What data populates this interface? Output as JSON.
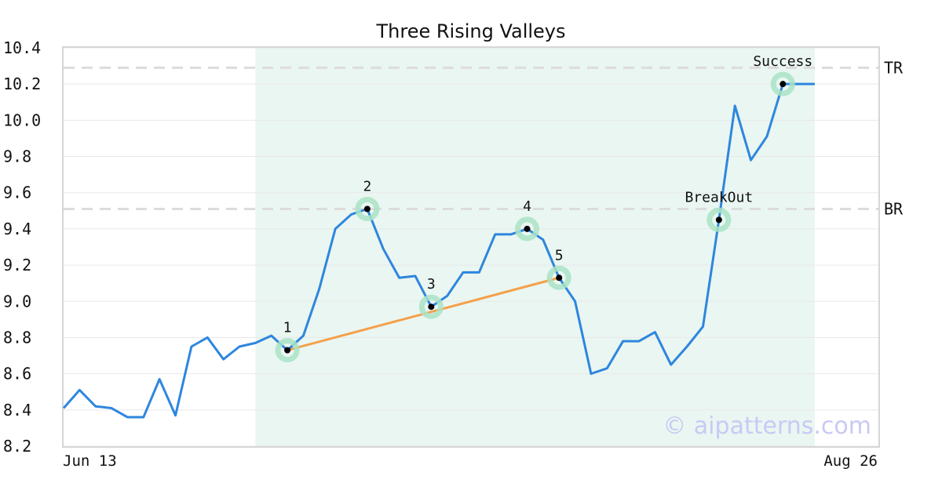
{
  "chart_data": {
    "type": "line",
    "title": "Three Rising Valleys",
    "x_start_label": "Jun 13",
    "x_end_label": "Aug 26",
    "ylim": [
      8.2,
      10.4
    ],
    "yticks": [
      "8.2",
      "8.4",
      "8.6",
      "8.8",
      "9.0",
      "9.2",
      "9.4",
      "9.6",
      "9.8",
      "10.0",
      "10.2",
      "10.4"
    ],
    "grid": true,
    "series": [
      {
        "color": "#2e86de",
        "values": [
          8.41,
          8.51,
          8.42,
          8.41,
          8.36,
          8.36,
          8.57,
          8.37,
          8.75,
          8.8,
          8.68,
          8.75,
          8.77,
          8.81,
          8.73,
          8.81,
          9.07,
          9.4,
          9.48,
          9.51,
          9.29,
          9.13,
          9.14,
          8.97,
          9.03,
          9.16,
          9.16,
          9.37,
          9.37,
          9.4,
          9.34,
          9.13,
          9.0,
          8.6,
          8.63,
          8.78,
          8.78,
          8.83,
          8.65,
          8.75,
          8.86,
          9.45,
          10.08,
          9.78,
          9.91,
          10.2,
          10.2,
          10.2
        ]
      }
    ],
    "pattern_region": {
      "start_index": 12,
      "end_index": 47,
      "color": "#eaf6f1"
    },
    "levels": [
      {
        "label": "TR",
        "value": 10.29
      },
      {
        "label": "BR",
        "value": 9.51
      }
    ],
    "trendline": {
      "from_index": 14,
      "to_index": 31,
      "color": "#f4a04a"
    },
    "markers": [
      {
        "label": "1",
        "index": 14,
        "value": 8.73,
        "label_pos": "above"
      },
      {
        "label": "2",
        "index": 19,
        "value": 9.51,
        "label_pos": "above"
      },
      {
        "label": "3",
        "index": 23,
        "value": 8.97,
        "label_pos": "above"
      },
      {
        "label": "4",
        "index": 29,
        "value": 9.4,
        "label_pos": "above"
      },
      {
        "label": "5",
        "index": 31,
        "value": 9.13,
        "label_pos": "above"
      },
      {
        "label": "BreakOut",
        "index": 41,
        "value": 9.45,
        "label_pos": "above"
      },
      {
        "label": "Success",
        "index": 45,
        "value": 10.2,
        "label_pos": "above"
      }
    ],
    "watermark": "© aipatterns.com"
  }
}
